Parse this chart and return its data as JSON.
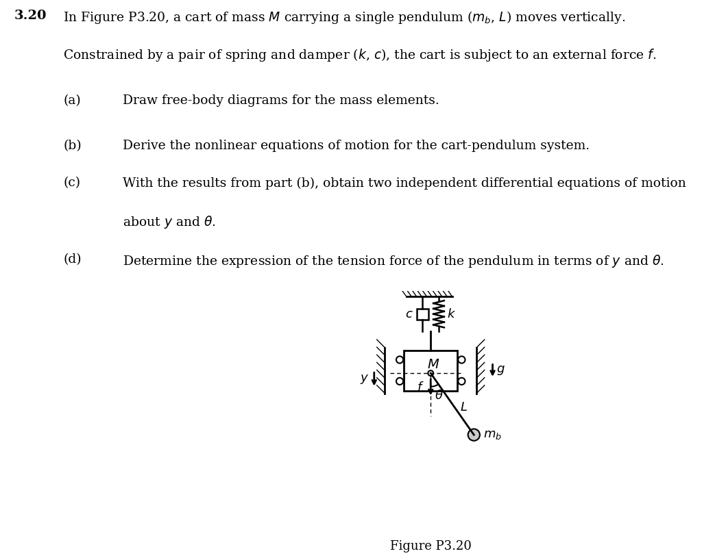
{
  "title_number": "3.20",
  "text_line1": "In Figure P3.20, a cart of mass $M$ carrying a single pendulum ($m_b$, $L$) moves vertically.",
  "text_line2": "Constrained by a pair of spring and damper ($k$, $c$), the cart is subject to an external force $f$.",
  "items": [
    [
      "(a)",
      "Draw free-body diagrams for the mass elements."
    ],
    [
      "(b)",
      "Derive the nonlinear equations of motion for the cart-pendulum system."
    ],
    [
      "(c)",
      "With the results from part (b), obtain two independent differential equations of motion\nabout $y$ and $\\theta$."
    ],
    [
      "(d)",
      "Determine the expression of the tension force of the pendulum in terms of $y$ and $\\theta$."
    ]
  ],
  "figure_caption": "Figure P3.20",
  "bg_color": "#ffffff",
  "text_color": "#000000",
  "diagram_color": "#000000",
  "wall_hatch_color": "#555555",
  "cart_color": "#ffffff",
  "pendulum_ball_color": "#cccccc"
}
